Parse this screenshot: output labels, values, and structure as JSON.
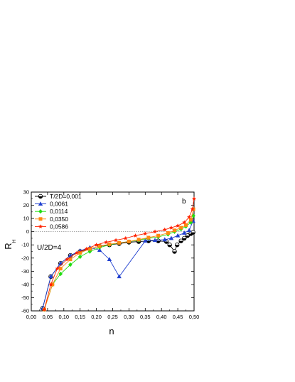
{
  "chart_data": {
    "type": "line",
    "title": "",
    "xlabel": "n",
    "ylabel": "R",
    "ylabel_sub": "H",
    "xlim": [
      0.0,
      0.5
    ],
    "ylim": [
      -60,
      30
    ],
    "xticks": [
      0.0,
      0.05,
      0.1,
      0.15,
      0.2,
      0.25,
      0.3,
      0.35,
      0.4,
      0.45,
      0.5
    ],
    "xtick_labels": [
      "0,00",
      "0,05",
      "0,10",
      "0,15",
      "0,20",
      "0,25",
      "0,30",
      "0,35",
      "0,40",
      "0,45",
      "0,50"
    ],
    "yticks": [
      30,
      20,
      10,
      0,
      -10,
      -20,
      -30,
      -40,
      -50,
      -60
    ],
    "ytick_labels": [
      "30",
      "20",
      "10",
      "0",
      "-10",
      "-20",
      "-30",
      "-40",
      "-50",
      "-60"
    ],
    "grid": false,
    "zero_line": true,
    "legend_position": "top-left",
    "annotations": [
      {
        "text": "b",
        "position": "top-right"
      },
      {
        "text": "U/2D=4",
        "position": "left"
      }
    ],
    "series": [
      {
        "name": "T/2D=0,001",
        "color": "#000000",
        "marker": "half-circle",
        "points": [
          [
            0.035,
            -58
          ],
          [
            0.06,
            -34
          ],
          [
            0.09,
            -24
          ],
          [
            0.12,
            -18
          ],
          [
            0.15,
            -15
          ],
          [
            0.18,
            -13
          ],
          [
            0.21,
            -11
          ],
          [
            0.24,
            -10
          ],
          [
            0.27,
            -9
          ],
          [
            0.3,
            -8
          ],
          [
            0.33,
            -7.5
          ],
          [
            0.36,
            -7
          ],
          [
            0.39,
            -7
          ],
          [
            0.415,
            -7.5
          ],
          [
            0.425,
            -10
          ],
          [
            0.44,
            -15
          ],
          [
            0.448,
            -10
          ],
          [
            0.46,
            -7
          ],
          [
            0.47,
            -5
          ],
          [
            0.48,
            -3
          ],
          [
            0.49,
            -1.5
          ],
          [
            0.497,
            -0.5
          ]
        ]
      },
      {
        "name": "0,0061",
        "color": "#1f3fcf",
        "marker": "triangle",
        "points": [
          [
            0.035,
            -58
          ],
          [
            0.06,
            -34
          ],
          [
            0.09,
            -24
          ],
          [
            0.12,
            -18
          ],
          [
            0.15,
            -14.5
          ],
          [
            0.18,
            -12
          ],
          [
            0.21,
            -14
          ],
          [
            0.24,
            -21
          ],
          [
            0.27,
            -34
          ],
          [
            0.35,
            -7
          ],
          [
            0.38,
            -6.5
          ],
          [
            0.41,
            -6
          ],
          [
            0.43,
            -5
          ],
          [
            0.45,
            -3
          ],
          [
            0.47,
            -1
          ],
          [
            0.485,
            1
          ],
          [
            0.497,
            8
          ]
        ]
      },
      {
        "name": "0,0114",
        "color": "#22dd11",
        "marker": "diamond",
        "points": [
          [
            0.04,
            -59
          ],
          [
            0.065,
            -40
          ],
          [
            0.09,
            -32
          ],
          [
            0.12,
            -25
          ],
          [
            0.15,
            -19
          ],
          [
            0.18,
            -15
          ],
          [
            0.21,
            -12
          ],
          [
            0.24,
            -10
          ],
          [
            0.27,
            -8.5
          ],
          [
            0.3,
            -7.5
          ],
          [
            0.33,
            -6.5
          ],
          [
            0.36,
            -5
          ],
          [
            0.39,
            -4
          ],
          [
            0.42,
            -2
          ],
          [
            0.44,
            0
          ],
          [
            0.46,
            2
          ],
          [
            0.475,
            4
          ],
          [
            0.49,
            7
          ],
          [
            0.498,
            12
          ]
        ]
      },
      {
        "name": "0,0350",
        "color": "#ff8811",
        "marker": "square",
        "points": [
          [
            0.04,
            -59
          ],
          [
            0.065,
            -40
          ],
          [
            0.09,
            -28
          ],
          [
            0.12,
            -21
          ],
          [
            0.15,
            -16
          ],
          [
            0.18,
            -13
          ],
          [
            0.21,
            -11
          ],
          [
            0.24,
            -9.5
          ],
          [
            0.27,
            -8.5
          ],
          [
            0.3,
            -7.5
          ],
          [
            0.33,
            -6
          ],
          [
            0.36,
            -4.5
          ],
          [
            0.39,
            -3
          ],
          [
            0.42,
            -1
          ],
          [
            0.44,
            1
          ],
          [
            0.46,
            3
          ],
          [
            0.475,
            5
          ],
          [
            0.49,
            9
          ],
          [
            0.498,
            17
          ]
        ]
      },
      {
        "name": "0,0586",
        "color": "#ff2200",
        "marker": "star",
        "points": [
          [
            0.04,
            -59
          ],
          [
            0.06,
            -40
          ],
          [
            0.08,
            -28
          ],
          [
            0.11,
            -21
          ],
          [
            0.14,
            -16
          ],
          [
            0.17,
            -13
          ],
          [
            0.2,
            -10
          ],
          [
            0.23,
            -8
          ],
          [
            0.26,
            -6.5
          ],
          [
            0.29,
            -5
          ],
          [
            0.32,
            -3
          ],
          [
            0.35,
            -1.5
          ],
          [
            0.38,
            0
          ],
          [
            0.41,
            1.5
          ],
          [
            0.43,
            3
          ],
          [
            0.45,
            4.5
          ],
          [
            0.47,
            7
          ],
          [
            0.485,
            11
          ],
          [
            0.495,
            17
          ],
          [
            0.5,
            25
          ]
        ]
      }
    ]
  }
}
